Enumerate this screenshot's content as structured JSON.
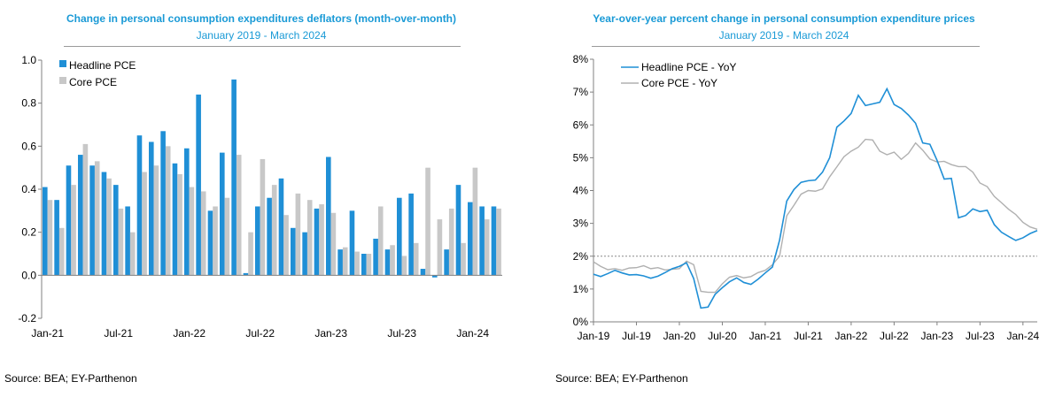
{
  "left": {
    "title": "Change in personal consumption expenditures deflators (month-over-month)",
    "subtitle": "January 2019 - March 2024",
    "source": "Source: BEA; EY-Parthenon"
  },
  "right": {
    "title": "Year-over-year percent change in personal consumption expenditure prices",
    "subtitle": "January 2019 - March 2024",
    "source": "Source: BEA; EY-Parthenon"
  },
  "colors": {
    "headline": "#1f8fd6",
    "core": "#c8c8c8",
    "title": "#1a9ad6",
    "core_line": "#b0b0b0"
  },
  "chart_data": [
    {
      "type": "bar",
      "title": "Change in personal consumption expenditures deflators (month-over-month)",
      "subtitle": "January 2019 - March 2024",
      "ylim": [
        -0.2,
        1.0
      ],
      "yticks": [
        "-0.2",
        "0.0",
        "0.2",
        "0.4",
        "0.6",
        "0.8",
        "1.0"
      ],
      "xtick_labels": [
        "Jan-21",
        "Jul-21",
        "Jan-22",
        "Jul-22",
        "Jan-23",
        "Jul-23",
        "Jan-24"
      ],
      "categories": [
        "Jan-21",
        "Feb-21",
        "Mar-21",
        "Apr-21",
        "May-21",
        "Jun-21",
        "Jul-21",
        "Aug-21",
        "Sep-21",
        "Oct-21",
        "Nov-21",
        "Dec-21",
        "Jan-22",
        "Feb-22",
        "Mar-22",
        "Apr-22",
        "May-22",
        "Jun-22",
        "Jul-22",
        "Aug-22",
        "Sep-22",
        "Oct-22",
        "Nov-22",
        "Dec-22",
        "Jan-23",
        "Feb-23",
        "Mar-23",
        "Apr-23",
        "May-23",
        "Jun-23",
        "Jul-23",
        "Aug-23",
        "Sep-23",
        "Oct-23",
        "Nov-23",
        "Dec-23",
        "Jan-24",
        "Feb-24",
        "Mar-24"
      ],
      "series": [
        {
          "name": "Headline PCE",
          "values": [
            0.41,
            0.35,
            0.51,
            0.56,
            0.51,
            0.48,
            0.42,
            0.32,
            0.65,
            0.62,
            0.67,
            0.52,
            0.59,
            0.84,
            0.3,
            0.57,
            0.91,
            0.01,
            0.32,
            0.36,
            0.45,
            0.22,
            0.2,
            0.31,
            0.55,
            0.12,
            0.3,
            0.1,
            0.17,
            0.12,
            0.36,
            0.38,
            0.03,
            -0.01,
            0.12,
            0.42,
            0.34,
            0.32,
            0.32
          ]
        },
        {
          "name": "Core PCE",
          "values": [
            0.35,
            0.22,
            0.42,
            0.61,
            0.53,
            0.45,
            0.31,
            0.2,
            0.48,
            0.51,
            0.6,
            0.47,
            0.41,
            0.39,
            0.32,
            0.36,
            0.56,
            0.2,
            0.54,
            0.42,
            0.28,
            0.38,
            0.35,
            0.33,
            0.29,
            0.13,
            0.11,
            0.1,
            0.32,
            0.14,
            0.09,
            0.15,
            0.5,
            0.26,
            0.31,
            0.15,
            0.5,
            0.26,
            0.31
          ]
        }
      ]
    },
    {
      "type": "line",
      "title": "Year-over-year percent change in personal consumption expenditure prices",
      "subtitle": "January 2019 - March 2024",
      "ylim": [
        0,
        8
      ],
      "yticks": [
        "0%",
        "1%",
        "2%",
        "3%",
        "4%",
        "5%",
        "6%",
        "7%",
        "8%"
      ],
      "xtick_labels": [
        "Jan-19",
        "Jul-19",
        "Jan-20",
        "Jul-20",
        "Jan-21",
        "Jul-21",
        "Jan-22",
        "Jul-22",
        "Jan-23",
        "Jul-23",
        "Jan-24"
      ],
      "reference_line": 2,
      "series": [
        {
          "name": "Headline PCE - YoY",
          "values": [
            1.45,
            1.38,
            1.47,
            1.57,
            1.49,
            1.43,
            1.44,
            1.4,
            1.33,
            1.39,
            1.5,
            1.62,
            1.69,
            1.8,
            1.32,
            0.42,
            0.45,
            0.84,
            1.04,
            1.22,
            1.34,
            1.2,
            1.14,
            1.3,
            1.49,
            1.67,
            2.49,
            3.68,
            4.03,
            4.25,
            4.3,
            4.32,
            4.56,
            5.0,
            5.93,
            6.12,
            6.35,
            6.9,
            6.59,
            6.64,
            6.69,
            7.1,
            6.62,
            6.5,
            6.3,
            6.05,
            5.45,
            5.41,
            4.92,
            4.35,
            4.37,
            3.17,
            3.24,
            3.44,
            3.36,
            3.4,
            2.96,
            2.73,
            2.6,
            2.48,
            2.56,
            2.69,
            2.78
          ]
        },
        {
          "name": "Core PCE - YoY",
          "values": [
            1.83,
            1.69,
            1.59,
            1.62,
            1.57,
            1.64,
            1.65,
            1.71,
            1.62,
            1.65,
            1.58,
            1.6,
            1.62,
            1.85,
            1.74,
            0.93,
            0.9,
            0.9,
            1.16,
            1.36,
            1.41,
            1.34,
            1.38,
            1.5,
            1.57,
            1.74,
            2.0,
            3.23,
            3.55,
            3.89,
            4.0,
            3.98,
            4.05,
            4.42,
            4.72,
            5.03,
            5.2,
            5.32,
            5.56,
            5.54,
            5.2,
            5.09,
            5.17,
            4.95,
            5.13,
            5.45,
            5.23,
            4.96,
            4.87,
            4.89,
            4.79,
            4.73,
            4.73,
            4.56,
            4.23,
            4.12,
            3.82,
            3.63,
            3.43,
            3.27,
            3.03,
            2.89,
            2.82
          ]
        }
      ]
    }
  ]
}
